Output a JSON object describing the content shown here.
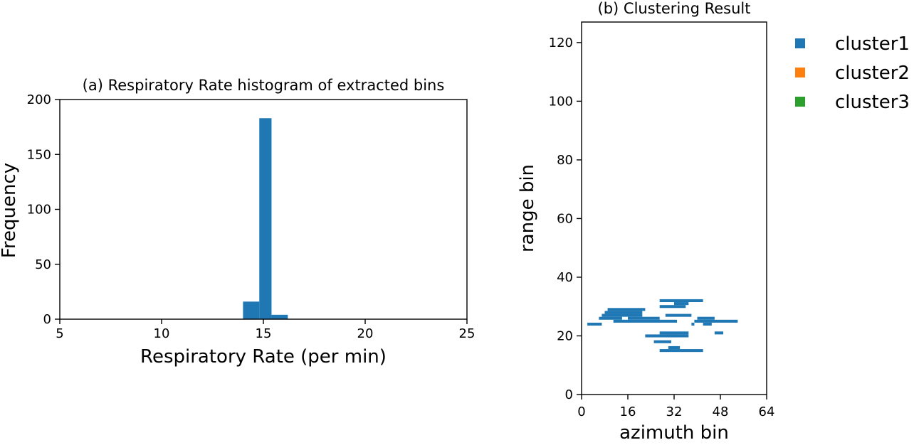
{
  "chart_data": [
    {
      "type": "bar",
      "title": "(a) Respiratory Rate histogram of extracted bins",
      "xlabel": "Respiratory Rate (per min)",
      "ylabel": "Frequency",
      "xlim": [
        5,
        25
      ],
      "ylim": [
        0,
        200
      ],
      "xticks": [
        "5",
        "10",
        "15",
        "20",
        "25"
      ],
      "yticks": [
        "0",
        "50",
        "100",
        "150",
        "200"
      ],
      "color": "#1f77b4",
      "bins": [
        {
          "start": 14.0,
          "end": 14.8,
          "value": 16
        },
        {
          "start": 14.8,
          "end": 15.4,
          "value": 183
        },
        {
          "start": 15.4,
          "end": 16.2,
          "value": 4
        }
      ]
    },
    {
      "type": "scatter",
      "title": "(b) Clustering Result",
      "xlabel": "azimuth bin",
      "ylabel": "range bin",
      "xlim": [
        0,
        64
      ],
      "ylim": [
        0,
        127
      ],
      "xticks": [
        "0",
        "16",
        "32",
        "48",
        "64"
      ],
      "yticks": [
        "0",
        "20",
        "40",
        "60",
        "80",
        "100",
        "120"
      ],
      "legend": {
        "position": "outside right",
        "entries": [
          {
            "label": "cluster1",
            "color": "#1f77b4"
          },
          {
            "label": "cluster2",
            "color": "#ff7f0e"
          },
          {
            "label": "cluster3",
            "color": "#2ca02c"
          }
        ]
      },
      "series": [
        {
          "name": "cluster1",
          "color": "#1f77b4",
          "segments": [
            {
              "x0": 2,
              "x1": 7,
              "y": 24
            },
            {
              "x0": 6,
              "x1": 14,
              "y": 26
            },
            {
              "x0": 7,
              "x1": 21,
              "y": 27
            },
            {
              "x0": 8,
              "x1": 21,
              "y": 28
            },
            {
              "x0": 9,
              "x1": 22,
              "y": 29
            },
            {
              "x0": 11,
              "x1": 33,
              "y": 25
            },
            {
              "x0": 16,
              "x1": 27,
              "y": 26
            },
            {
              "x0": 27,
              "x1": 42,
              "y": 32
            },
            {
              "x0": 27,
              "x1": 36,
              "y": 30
            },
            {
              "x0": 29,
              "x1": 38,
              "y": 27
            },
            {
              "x0": 32,
              "x1": 37,
              "y": 31
            },
            {
              "x0": 38,
              "x1": 39,
              "y": 24
            },
            {
              "x0": 40,
              "x1": 46,
              "y": 26
            },
            {
              "x0": 39,
              "x1": 54,
              "y": 25
            },
            {
              "x0": 42,
              "x1": 45,
              "y": 24
            },
            {
              "x0": 27,
              "x1": 37,
              "y": 21
            },
            {
              "x0": 22,
              "x1": 37,
              "y": 20
            },
            {
              "x0": 29,
              "x1": 33,
              "y": 20
            },
            {
              "x0": 46,
              "x1": 49,
              "y": 21
            },
            {
              "x0": 25,
              "x1": 31,
              "y": 18
            },
            {
              "x0": 30,
              "x1": 34,
              "y": 16
            },
            {
              "x0": 27,
              "x1": 42,
              "y": 15
            }
          ]
        },
        {
          "name": "cluster2",
          "color": "#ff7f0e",
          "segments": []
        },
        {
          "name": "cluster3",
          "color": "#2ca02c",
          "segments": []
        }
      ]
    }
  ]
}
